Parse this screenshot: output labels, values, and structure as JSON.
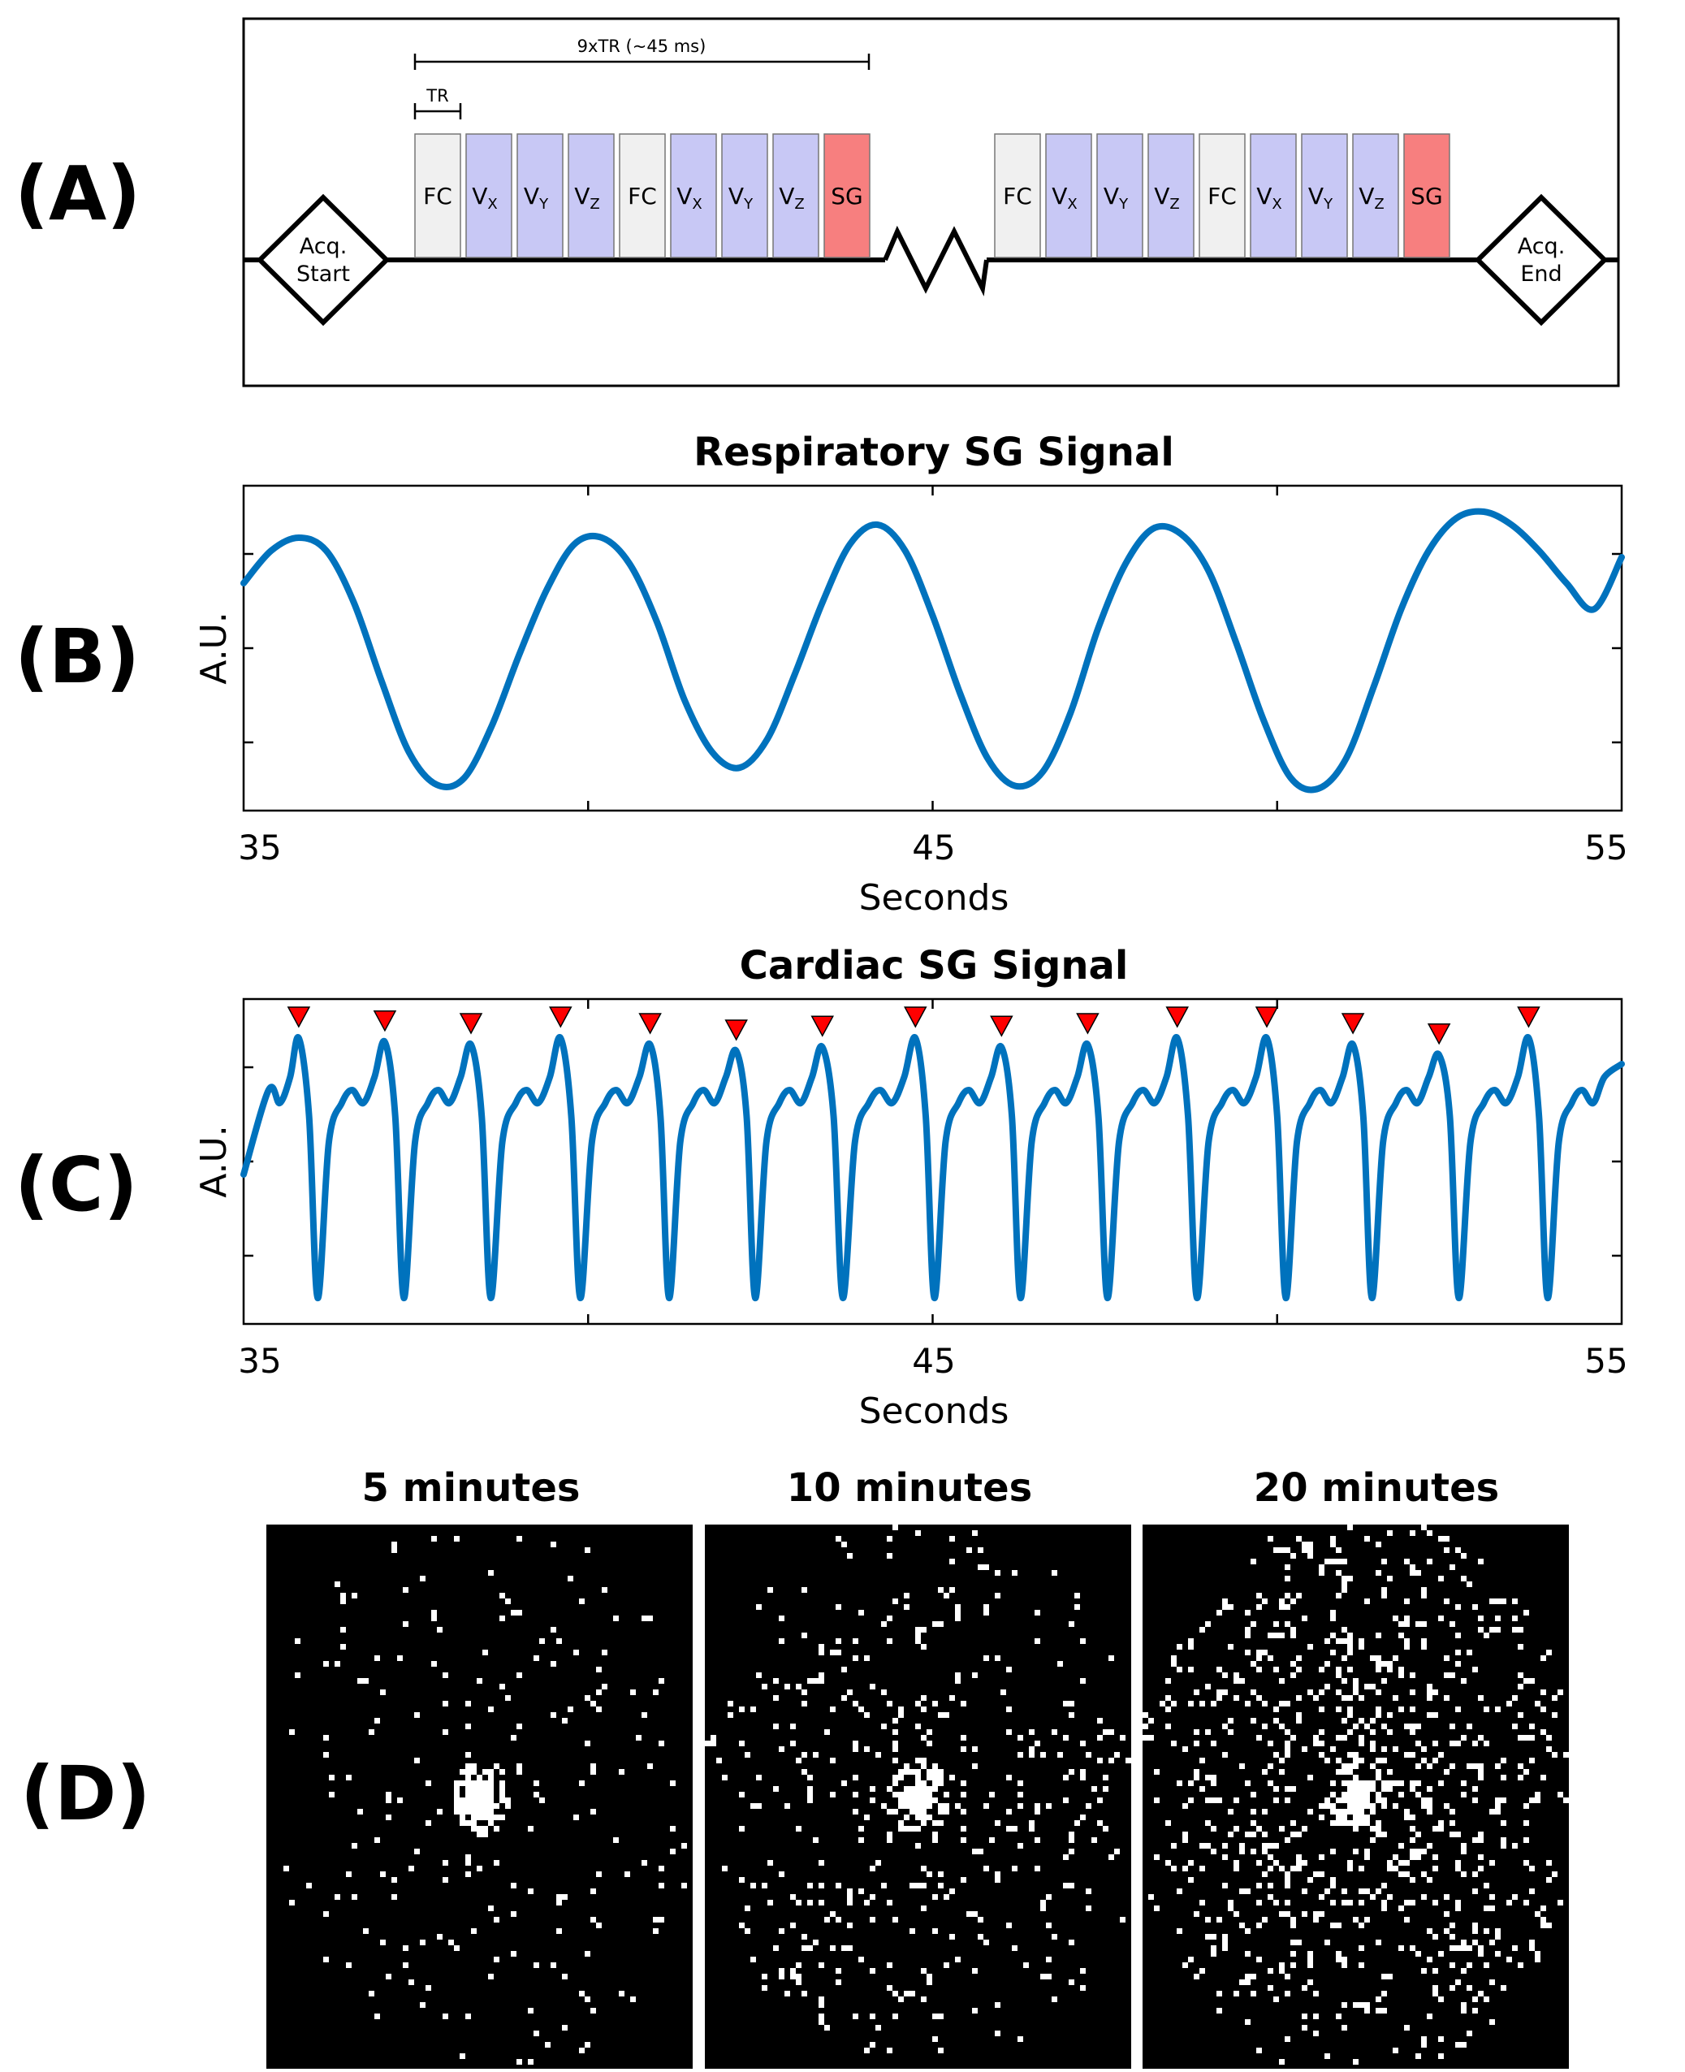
{
  "panels": {
    "a": {
      "label": "(A)"
    },
    "b": {
      "label": "(B)"
    },
    "c": {
      "label": "(C)"
    },
    "d": {
      "label": "(D)"
    }
  },
  "sequence": {
    "span_label": "9xTR (~45 ms)",
    "tr_label": "TR",
    "start_line1": "Acq.",
    "start_line2": "Start",
    "end_line1": "Acq.",
    "end_line2": "End",
    "blocks": [
      {
        "main": "FC",
        "sub": "",
        "kind": "fc"
      },
      {
        "main": "V",
        "sub": "X",
        "kind": "v"
      },
      {
        "main": "V",
        "sub": "Y",
        "kind": "v"
      },
      {
        "main": "V",
        "sub": "Z",
        "kind": "v"
      },
      {
        "main": "FC",
        "sub": "",
        "kind": "fc"
      },
      {
        "main": "V",
        "sub": "X",
        "kind": "v"
      },
      {
        "main": "V",
        "sub": "Y",
        "kind": "v"
      },
      {
        "main": "V",
        "sub": "Z",
        "kind": "v"
      },
      {
        "main": "SG",
        "sub": "",
        "kind": "sg"
      }
    ],
    "colors": {
      "fc": "#f0f0f0",
      "v": "#c8c8f5",
      "sg": "#f77f7f"
    }
  },
  "chart_data": [
    {
      "type": "line",
      "title": "Respiratory SG Signal",
      "xlabel": "Seconds",
      "ylabel": "A.U.",
      "xlim": [
        35,
        55
      ],
      "ylim": [
        -1.25,
        1.25
      ],
      "xticks": [
        35,
        45,
        55
      ],
      "grid": false,
      "series": [
        {
          "color": "#0072BD",
          "x": [
            35.0,
            35.4,
            35.8,
            36.2,
            36.6,
            37.0,
            37.4,
            37.8,
            38.2,
            38.6,
            39.0,
            39.4,
            39.8,
            40.2,
            40.6,
            41.0,
            41.4,
            41.8,
            42.2,
            42.6,
            43.0,
            43.4,
            43.8,
            44.2,
            44.6,
            45.0,
            45.4,
            45.8,
            46.2,
            46.6,
            47.0,
            47.4,
            47.8,
            48.2,
            48.6,
            49.0,
            49.4,
            49.8,
            50.2,
            50.6,
            51.0,
            51.4,
            51.8,
            52.2,
            52.6,
            53.0,
            53.4,
            53.8,
            54.2,
            54.6,
            55.0
          ],
          "y": [
            0.5,
            0.75,
            0.85,
            0.75,
            0.35,
            -0.25,
            -0.8,
            -1.05,
            -1.0,
            -0.6,
            -0.05,
            0.45,
            0.8,
            0.85,
            0.65,
            0.2,
            -0.4,
            -0.8,
            -0.92,
            -0.7,
            -0.2,
            0.35,
            0.8,
            0.95,
            0.75,
            0.25,
            -0.35,
            -0.85,
            -1.06,
            -0.95,
            -0.5,
            0.15,
            0.65,
            0.92,
            0.88,
            0.6,
            0.05,
            -0.55,
            -1.0,
            -1.08,
            -0.85,
            -0.3,
            0.3,
            0.75,
            1.0,
            1.05,
            0.95,
            0.75,
            0.5,
            0.3,
            0.7
          ]
        }
      ]
    },
    {
      "type": "line",
      "title": "Cardiac SG Signal",
      "xlabel": "Seconds",
      "ylabel": "A.U.",
      "xlim": [
        35,
        55
      ],
      "ylim": [
        -1.25,
        1.25
      ],
      "xticks": [
        35,
        45,
        55
      ],
      "grid": false,
      "peak_marker_color": "#ff0000",
      "peaks_x": [
        35.8,
        37.05,
        38.3,
        39.6,
        40.9,
        42.15,
        43.4,
        44.75,
        46.0,
        47.25,
        48.55,
        49.85,
        51.1,
        52.35,
        53.65
      ],
      "peaks_y": [
        0.95,
        0.92,
        0.9,
        0.95,
        0.9,
        0.85,
        0.88,
        0.95,
        0.88,
        0.9,
        0.95,
        0.95,
        0.9,
        0.82,
        0.95
      ],
      "beat_shape": [
        {
          "phase": 0.0,
          "y": 0.95
        },
        {
          "phase": 0.12,
          "y": 0.35
        },
        {
          "phase": 0.22,
          "y": -1.05
        },
        {
          "phase": 0.35,
          "y": 0.15
        },
        {
          "phase": 0.5,
          "y": 0.45
        },
        {
          "phase": 0.62,
          "y": 0.55
        },
        {
          "phase": 0.75,
          "y": 0.45
        },
        {
          "phase": 0.88,
          "y": 0.65
        }
      ],
      "series": [
        {
          "color": "#0072BD",
          "x_start": 35.0,
          "x_end": 55.0
        }
      ]
    }
  ],
  "masks": [
    {
      "title": "5 minutes",
      "density": 0.05
    },
    {
      "title": "10 minutes",
      "density": 0.1
    },
    {
      "title": "20 minutes",
      "density": 0.2
    }
  ]
}
